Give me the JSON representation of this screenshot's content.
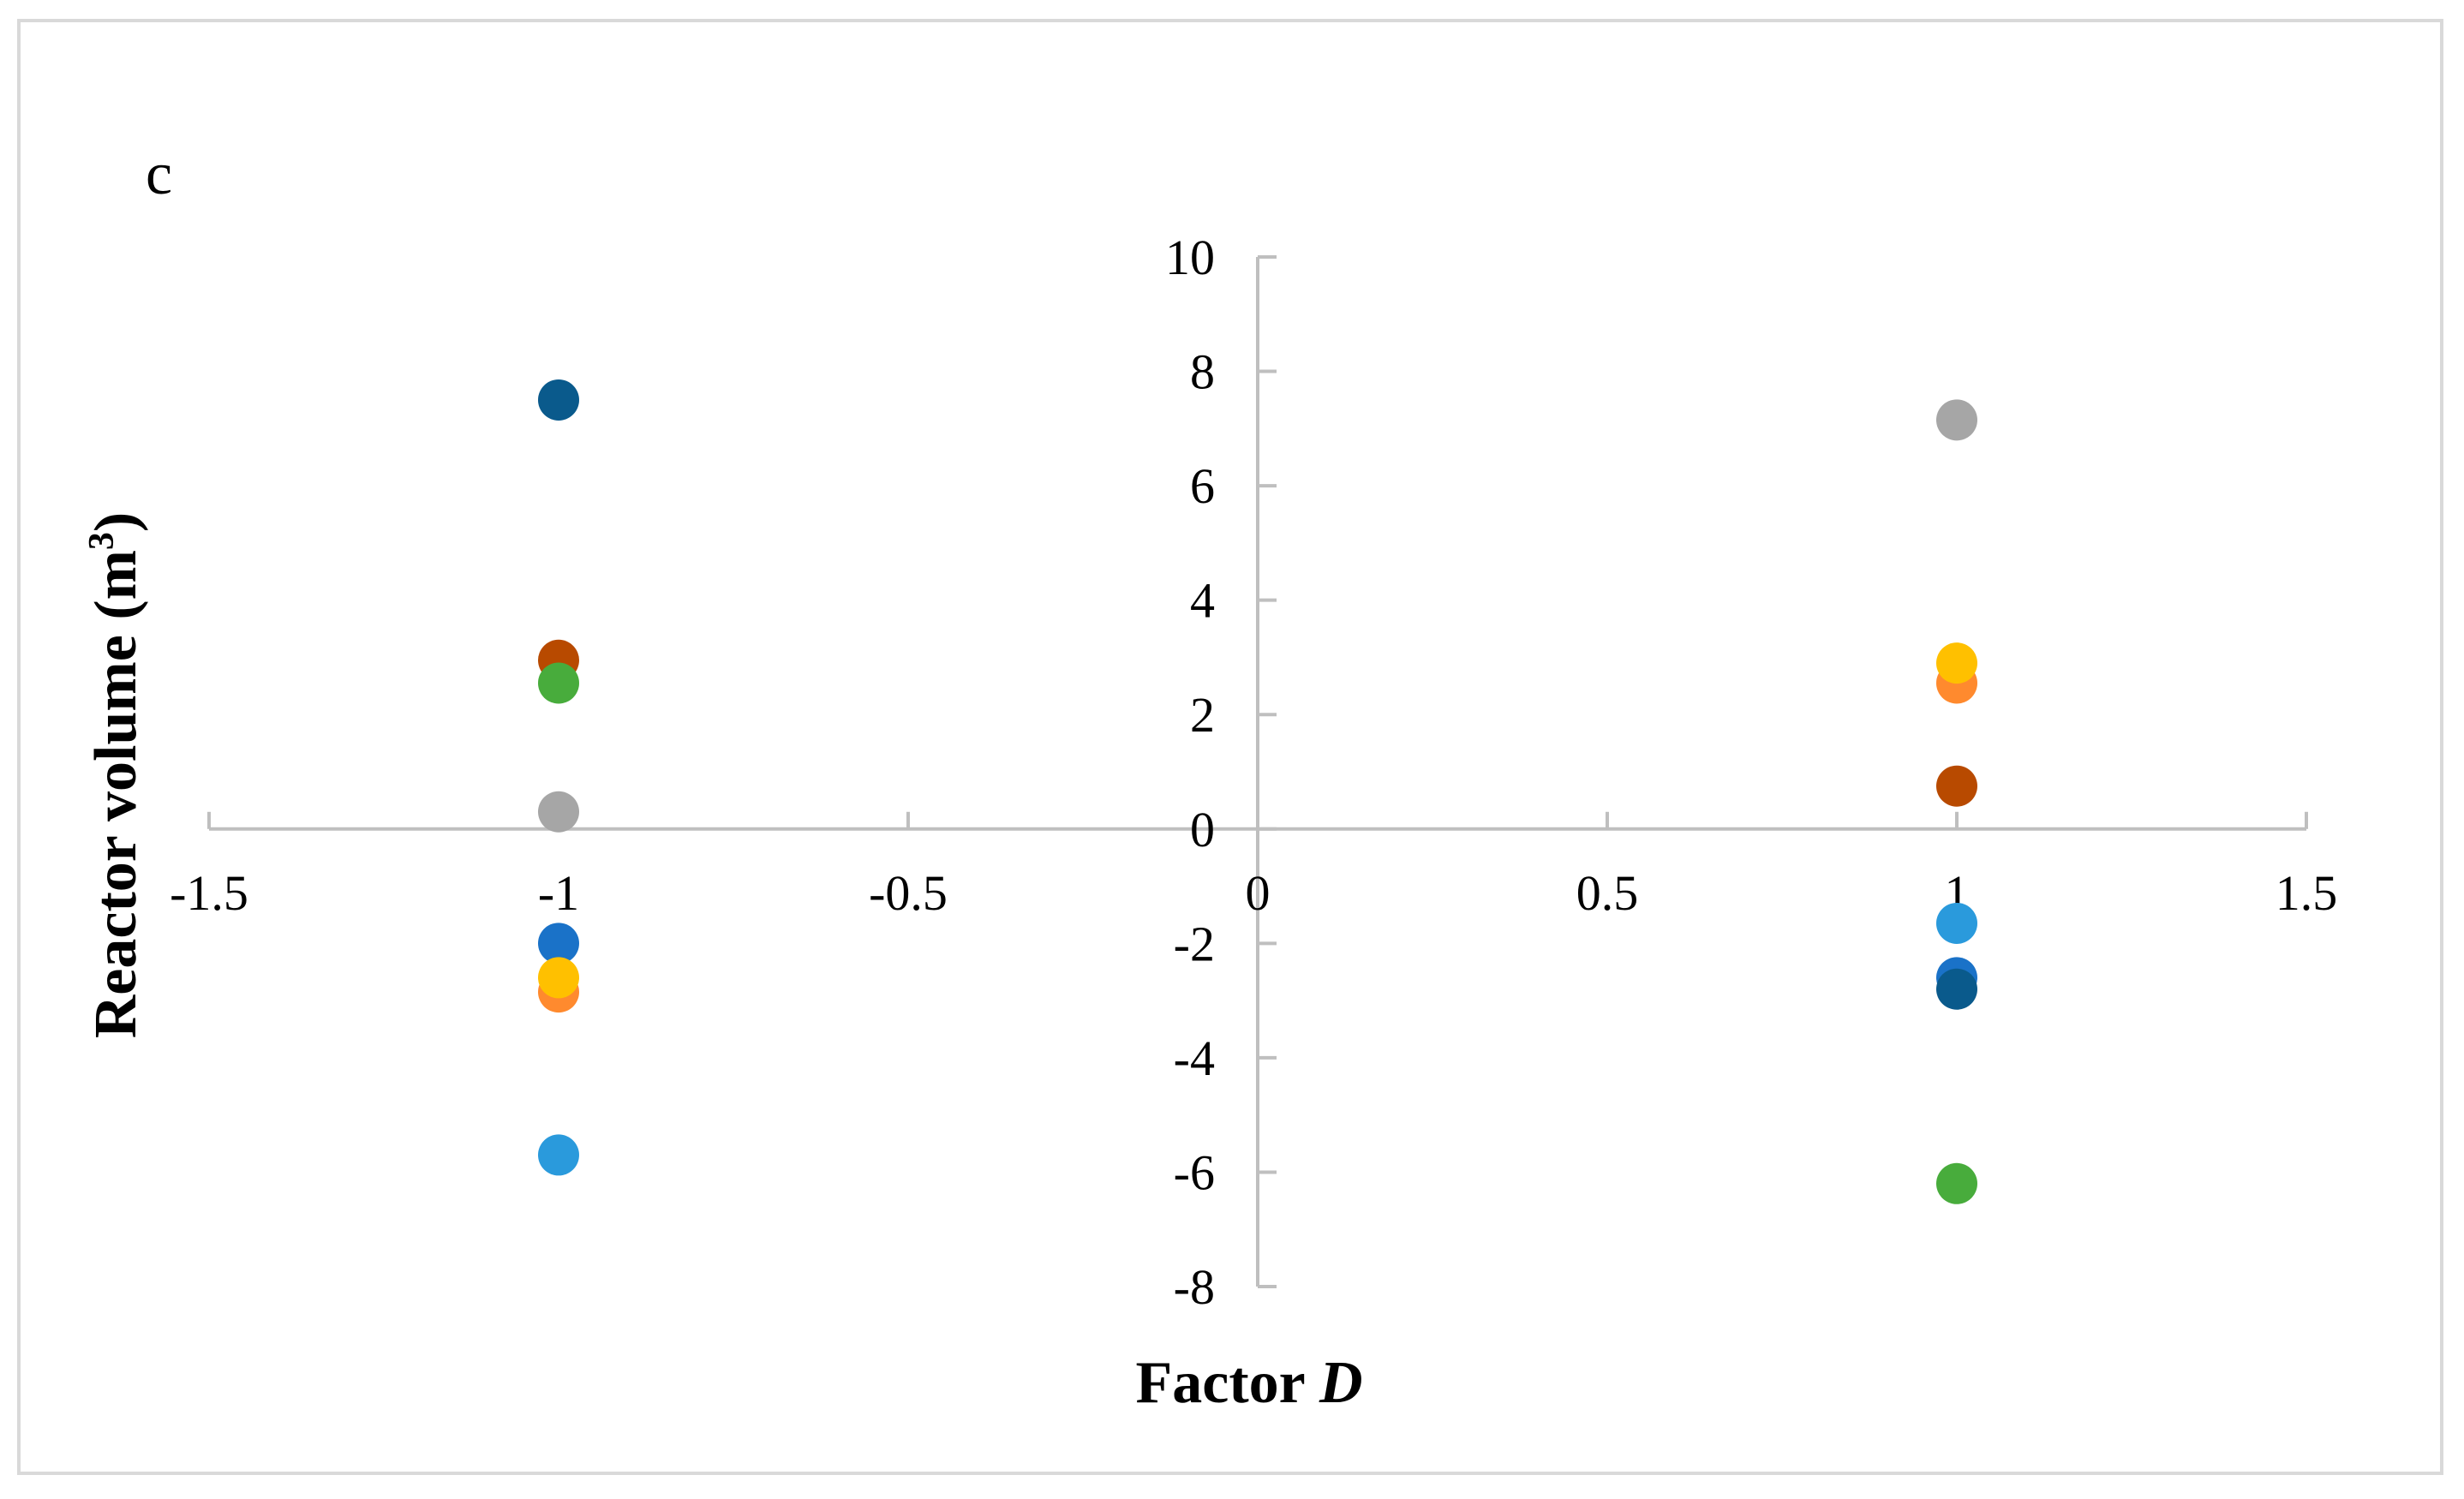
{
  "chart_data": {
    "type": "scatter",
    "panel_label": "c",
    "title": "",
    "xlabel_main": "Factor ",
    "xlabel_italic": "D",
    "ylabel_main": "Reactor volume (m",
    "ylabel_sup": "3",
    "ylabel_close": ")",
    "xlim": [
      -1.5,
      1.5
    ],
    "ylim": [
      -8,
      10
    ],
    "x_ticks": [
      -1.5,
      -1,
      -0.5,
      0,
      0.5,
      1,
      1.5
    ],
    "x_tick_labels": [
      "-1.5",
      "-1",
      "-0.5",
      "0",
      "0.5",
      "1",
      "1.5"
    ],
    "y_ticks": [
      -8,
      -6,
      -4,
      -2,
      0,
      2,
      4,
      6,
      8,
      10
    ],
    "y_tick_labels": [
      "-8",
      "-6",
      "-4",
      "-2",
      "0",
      "2",
      "4",
      "6",
      "8",
      "10"
    ],
    "grid": false,
    "legend": "none",
    "points": [
      {
        "x": -1,
        "y": 7.5,
        "color": "#0A5A8C"
      },
      {
        "x": -1,
        "y": 2.95,
        "color": "#B84A00"
      },
      {
        "x": -1,
        "y": 2.55,
        "color": "#48AC3C"
      },
      {
        "x": -1,
        "y": 0.3,
        "color": "#A6A6A6"
      },
      {
        "x": -1,
        "y": -2.0,
        "color": "#1A72C8"
      },
      {
        "x": -1,
        "y": -2.85,
        "color": "#FF8A2E"
      },
      {
        "x": -1,
        "y": -2.6,
        "color": "#FFC000"
      },
      {
        "x": -1,
        "y": -5.7,
        "color": "#2A9ADC"
      },
      {
        "x": 1,
        "y": 7.15,
        "color": "#A6A6A6"
      },
      {
        "x": 1,
        "y": 2.55,
        "color": "#FF8A2E"
      },
      {
        "x": 1,
        "y": 2.9,
        "color": "#FFC000"
      },
      {
        "x": 1,
        "y": 0.75,
        "color": "#B84A00"
      },
      {
        "x": 1,
        "y": -1.65,
        "color": "#2A9ADC"
      },
      {
        "x": 1,
        "y": -2.6,
        "color": "#1A72C8"
      },
      {
        "x": 1,
        "y": -2.8,
        "color": "#0A5A8C"
      },
      {
        "x": 1,
        "y": -6.2,
        "color": "#48AC3C"
      }
    ],
    "axis_color": "#BFBFBF"
  }
}
